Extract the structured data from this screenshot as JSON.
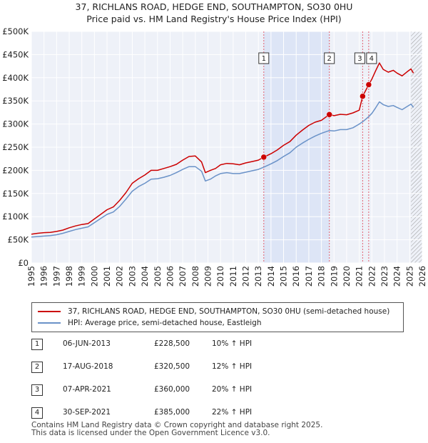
{
  "title": "37, RICHLANS ROAD, HEDGE END, SOUTHAMPTON, SO30 0HU",
  "subtitle": "Price paid vs. HM Land Registry's House Price Index (HPI)",
  "chart_data": {
    "type": "line",
    "x_range": [
      1995,
      2026
    ],
    "ylim": [
      0,
      500000
    ],
    "y_ticks": [
      {
        "v": 0,
        "label": "£0"
      },
      {
        "v": 50000,
        "label": "£50K"
      },
      {
        "v": 100000,
        "label": "£100K"
      },
      {
        "v": 150000,
        "label": "£150K"
      },
      {
        "v": 200000,
        "label": "£200K"
      },
      {
        "v": 250000,
        "label": "£250K"
      },
      {
        "v": 300000,
        "label": "£300K"
      },
      {
        "v": 350000,
        "label": "£350K"
      },
      {
        "v": 400000,
        "label": "£400K"
      },
      {
        "v": 450000,
        "label": "£450K"
      },
      {
        "v": 500000,
        "label": "£500K"
      }
    ],
    "x_ticks": [
      "1995",
      "1996",
      "1997",
      "1998",
      "1999",
      "2000",
      "2001",
      "2002",
      "2003",
      "2004",
      "2005",
      "2006",
      "2007",
      "2008",
      "2009",
      "2010",
      "2011",
      "2012",
      "2013",
      "2014",
      "2015",
      "2016",
      "2017",
      "2018",
      "2019",
      "2020",
      "2021",
      "2022",
      "2023",
      "2024",
      "2025",
      "2026"
    ],
    "grid": true,
    "shaded_period": [
      2013.43,
      2018.63
    ],
    "forecast_from": 2025.1,
    "series": [
      {
        "name": "37, RICHLANS ROAD, HEDGE END, SOUTHAMPTON, SO30 0HU (semi-detached house)",
        "color": "#cc0000",
        "points": [
          [
            1995.0,
            62000
          ],
          [
            1995.5,
            64000
          ],
          [
            1996.0,
            65500
          ],
          [
            1996.5,
            66000
          ],
          [
            1997.0,
            68000
          ],
          [
            1997.5,
            71000
          ],
          [
            1998.0,
            76000
          ],
          [
            1998.5,
            80000
          ],
          [
            1999.0,
            83000
          ],
          [
            1999.5,
            85000
          ],
          [
            2000.0,
            95000
          ],
          [
            2000.5,
            105000
          ],
          [
            2001.0,
            115000
          ],
          [
            2001.5,
            121000
          ],
          [
            2002.0,
            135000
          ],
          [
            2002.5,
            152000
          ],
          [
            2003.0,
            172000
          ],
          [
            2003.5,
            182000
          ],
          [
            2004.0,
            190000
          ],
          [
            2004.5,
            200000
          ],
          [
            2005.0,
            200000
          ],
          [
            2005.5,
            204000
          ],
          [
            2006.0,
            208000
          ],
          [
            2006.5,
            213000
          ],
          [
            2007.0,
            222000
          ],
          [
            2007.5,
            230000
          ],
          [
            2008.0,
            231000
          ],
          [
            2008.5,
            218000
          ],
          [
            2008.8,
            195000
          ],
          [
            2009.2,
            200000
          ],
          [
            2009.6,
            204000
          ],
          [
            2010.0,
            212000
          ],
          [
            2010.5,
            215000
          ],
          [
            2011.0,
            214000
          ],
          [
            2011.5,
            212000
          ],
          [
            2012.0,
            216000
          ],
          [
            2012.5,
            219000
          ],
          [
            2013.0,
            222000
          ],
          [
            2013.43,
            228500
          ],
          [
            2014.0,
            236000
          ],
          [
            2014.5,
            244000
          ],
          [
            2015.0,
            254000
          ],
          [
            2015.5,
            262000
          ],
          [
            2016.0,
            276000
          ],
          [
            2016.5,
            287000
          ],
          [
            2017.0,
            297000
          ],
          [
            2017.5,
            304000
          ],
          [
            2018.0,
            308000
          ],
          [
            2018.63,
            320500
          ],
          [
            2019.0,
            318000
          ],
          [
            2019.5,
            321000
          ],
          [
            2020.0,
            320000
          ],
          [
            2020.5,
            324000
          ],
          [
            2021.0,
            330000
          ],
          [
            2021.27,
            360000
          ],
          [
            2021.5,
            372000
          ],
          [
            2021.75,
            385000
          ],
          [
            2022.0,
            397000
          ],
          [
            2022.3,
            415000
          ],
          [
            2022.6,
            432000
          ],
          [
            2022.9,
            418000
          ],
          [
            2023.3,
            412000
          ],
          [
            2023.7,
            416000
          ],
          [
            2024.0,
            410000
          ],
          [
            2024.4,
            404000
          ],
          [
            2024.8,
            413000
          ],
          [
            2025.1,
            419000
          ],
          [
            2025.3,
            410000
          ]
        ]
      },
      {
        "name": "HPI: Average price, semi-detached house, Eastleigh",
        "color": "#6a92c8",
        "points": [
          [
            1995.0,
            56000
          ],
          [
            1995.5,
            57000
          ],
          [
            1996.0,
            58000
          ],
          [
            1996.5,
            59000
          ],
          [
            1997.0,
            61000
          ],
          [
            1997.5,
            64000
          ],
          [
            1998.0,
            68000
          ],
          [
            1998.5,
            72000
          ],
          [
            1999.0,
            75000
          ],
          [
            1999.5,
            78000
          ],
          [
            2000.0,
            87000
          ],
          [
            2000.5,
            96000
          ],
          [
            2001.0,
            105000
          ],
          [
            2001.5,
            110000
          ],
          [
            2002.0,
            122000
          ],
          [
            2002.5,
            138000
          ],
          [
            2003.0,
            155000
          ],
          [
            2003.5,
            165000
          ],
          [
            2004.0,
            172000
          ],
          [
            2004.5,
            181000
          ],
          [
            2005.0,
            182000
          ],
          [
            2005.5,
            185000
          ],
          [
            2006.0,
            189000
          ],
          [
            2006.5,
            195000
          ],
          [
            2007.0,
            202000
          ],
          [
            2007.5,
            208000
          ],
          [
            2008.0,
            208000
          ],
          [
            2008.5,
            198000
          ],
          [
            2008.8,
            177000
          ],
          [
            2009.2,
            181000
          ],
          [
            2009.6,
            188000
          ],
          [
            2010.0,
            193000
          ],
          [
            2010.5,
            195000
          ],
          [
            2011.0,
            193000
          ],
          [
            2011.5,
            193000
          ],
          [
            2012.0,
            196000
          ],
          [
            2012.5,
            199000
          ],
          [
            2013.0,
            202000
          ],
          [
            2013.43,
            207000
          ],
          [
            2014.0,
            214000
          ],
          [
            2014.5,
            221000
          ],
          [
            2015.0,
            230000
          ],
          [
            2015.5,
            238000
          ],
          [
            2016.0,
            250000
          ],
          [
            2016.5,
            259000
          ],
          [
            2017.0,
            267000
          ],
          [
            2017.5,
            274000
          ],
          [
            2018.0,
            280000
          ],
          [
            2018.63,
            286000
          ],
          [
            2019.0,
            285000
          ],
          [
            2019.5,
            288000
          ],
          [
            2020.0,
            288000
          ],
          [
            2020.5,
            292000
          ],
          [
            2021.0,
            300000
          ],
          [
            2021.27,
            305000
          ],
          [
            2021.5,
            310000
          ],
          [
            2021.75,
            316000
          ],
          [
            2022.0,
            323000
          ],
          [
            2022.3,
            335000
          ],
          [
            2022.6,
            348000
          ],
          [
            2022.9,
            342000
          ],
          [
            2023.3,
            338000
          ],
          [
            2023.7,
            340000
          ],
          [
            2024.0,
            336000
          ],
          [
            2024.4,
            331000
          ],
          [
            2024.8,
            338000
          ],
          [
            2025.1,
            343000
          ],
          [
            2025.3,
            336000
          ]
        ]
      }
    ],
    "sales": [
      {
        "label": "1",
        "x": 2013.43,
        "y": 228500
      },
      {
        "label": "2",
        "x": 2018.63,
        "y": 320500
      },
      {
        "label": "3",
        "x": 2021.27,
        "y": 360000
      },
      {
        "label": "4",
        "x": 2021.75,
        "y": 385000
      }
    ]
  },
  "legend": {
    "property": "37, RICHLANS ROAD, HEDGE END, SOUTHAMPTON, SO30 0HU (semi-detached house)",
    "hpi": "HPI: Average price, semi-detached house, Eastleigh",
    "property_color": "#cc0000",
    "hpi_color": "#6a92c8"
  },
  "sales_table": [
    {
      "num": "1",
      "date": "06-JUN-2013",
      "price": "£228,500",
      "hpi": "10% ↑ HPI"
    },
    {
      "num": "2",
      "date": "17-AUG-2018",
      "price": "£320,500",
      "hpi": "12% ↑ HPI"
    },
    {
      "num": "3",
      "date": "07-APR-2021",
      "price": "£360,000",
      "hpi": "20% ↑ HPI"
    },
    {
      "num": "4",
      "date": "30-SEP-2021",
      "price": "£385,000",
      "hpi": "22% ↑ HPI"
    }
  ],
  "footer": {
    "line1": "Contains HM Land Registry data © Crown copyright and database right 2025.",
    "line2": "This data is licensed under the Open Government Licence v3.0."
  }
}
